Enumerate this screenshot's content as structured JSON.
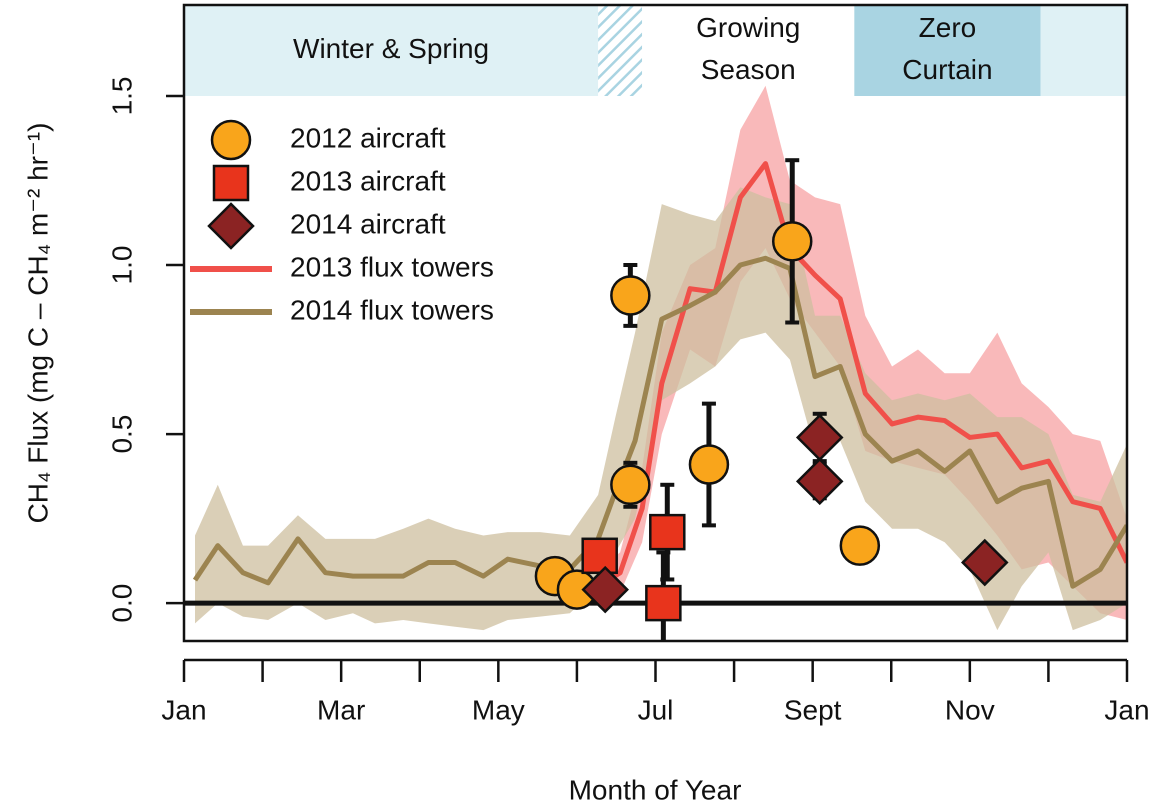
{
  "chart_data": {
    "type": "scatter",
    "xlabel": "Month of Year",
    "ylabel": "CH₄ Flux (mg C – CH₄ m⁻² hr⁻¹)",
    "xlim": [
      0,
      12
    ],
    "ylim": [
      -0.112,
      1.769
    ],
    "xticks": [
      {
        "value": 0,
        "label": "Jan"
      },
      {
        "value": 2,
        "label": "Mar"
      },
      {
        "value": 4,
        "label": "May"
      },
      {
        "value": 6,
        "label": "Jul"
      },
      {
        "value": 8,
        "label": "Sept"
      },
      {
        "value": 10,
        "label": "Nov"
      },
      {
        "value": 12,
        "label": "Jan"
      }
    ],
    "xticks_minor": [
      1,
      3,
      5,
      7,
      9,
      11
    ],
    "yticks": [
      {
        "value": 0,
        "label": "0.0"
      },
      0.5,
      {
        "value": 1,
        "label": "1.0"
      },
      1.5
    ],
    "reference_line": 0,
    "legend": "upper left",
    "seasons": [
      {
        "label": [
          "Winter & Spring"
        ],
        "start": 0,
        "end": 5.27,
        "color": "#dff1f5"
      },
      {
        "start": 5.27,
        "end": 5.83,
        "color": "#a9d4e2",
        "pattern": "hatch"
      },
      {
        "label": [
          "Growing",
          "Season"
        ],
        "start": 5.83,
        "end": 8.53,
        "color": "#ffffff"
      },
      {
        "label": [
          "Zero",
          "Curtain"
        ],
        "start": 8.53,
        "end": 10.9,
        "color": "#a9d4e2"
      },
      {
        "start": 10.9,
        "end": 12,
        "color": "#dff1f5"
      }
    ],
    "series": [
      {
        "name": "2012 aircraft",
        "kind": "scatter",
        "marker": "circle",
        "color": "#f9a51b",
        "x": [
          4.72,
          5.0,
          5.68,
          5.68,
          6.68,
          7.74,
          8.6
        ],
        "values": [
          0.08,
          0.04,
          0.91,
          0.35,
          0.41,
          1.07,
          0.17
        ],
        "errors": [
          null,
          null,
          0.09,
          0.065,
          0.18,
          0.24,
          null
        ]
      },
      {
        "name": "2013 aircraft",
        "kind": "scatter",
        "marker": "square",
        "color": "#e8341c",
        "x": [
          5.29,
          6.15,
          6.1
        ],
        "values": [
          0.14,
          0.21,
          0.0
        ],
        "errors": [
          null,
          0.14,
          0.15
        ]
      },
      {
        "name": "2014 aircraft",
        "kind": "scatter",
        "marker": "diamond",
        "color": "#8b2323",
        "x": [
          5.36,
          8.09,
          8.09,
          10.19
        ],
        "values": [
          0.04,
          0.49,
          0.36,
          0.12
        ],
        "errors": [
          null,
          0.07,
          0.05,
          null
        ]
      },
      {
        "name": "2013 flux towers",
        "kind": "line",
        "color": "#f0504a",
        "band_color": "#f7a1a3",
        "x": [
          5.27,
          5.55,
          5.83,
          6.08,
          6.44,
          6.76,
          7.08,
          7.4,
          7.71,
          8.03,
          8.35,
          8.67,
          9.01,
          9.34,
          9.68,
          10.0,
          10.35,
          10.66,
          11.0,
          11.31,
          11.66,
          12.0
        ],
        "values": [
          0.05,
          0.09,
          0.28,
          0.65,
          0.93,
          0.92,
          1.2,
          1.3,
          1.05,
          0.97,
          0.9,
          0.62,
          0.53,
          0.55,
          0.54,
          0.49,
          0.5,
          0.4,
          0.42,
          0.3,
          0.28,
          0.12
        ],
        "lower": [
          0,
          0.03,
          0.18,
          0.5,
          0.75,
          0.7,
          0.95,
          1.05,
          0.9,
          0.8,
          0.7,
          0.45,
          0.42,
          0.4,
          0.38,
          0.3,
          0.2,
          0.1,
          0.12,
          0.05,
          -0.03,
          -0.05
        ],
        "upper": [
          0.1,
          0.15,
          0.4,
          0.8,
          1.0,
          1.05,
          1.4,
          1.53,
          1.25,
          1.2,
          1.18,
          0.85,
          0.7,
          0.75,
          0.68,
          0.68,
          0.8,
          0.65,
          0.58,
          0.5,
          0.48,
          0.25
        ]
      },
      {
        "name": "2014 flux towers",
        "kind": "line",
        "color": "#9c8450",
        "band_color": "#cdbf9f",
        "x": [
          0.14,
          0.43,
          0.75,
          1.07,
          1.45,
          1.8,
          2.15,
          2.43,
          2.79,
          3.11,
          3.45,
          3.81,
          4.12,
          4.53,
          4.91,
          5.27,
          5.49,
          5.74,
          6.08,
          6.44,
          6.76,
          7.08,
          7.4,
          7.71,
          8.03,
          8.35,
          8.67,
          9.01,
          9.34,
          9.68,
          10.0,
          10.35,
          10.66,
          11.0,
          11.31,
          11.66,
          12.0
        ],
        "values": [
          0.068,
          0.17,
          0.09,
          0.06,
          0.19,
          0.09,
          0.08,
          0.08,
          0.08,
          0.12,
          0.12,
          0.08,
          0.13,
          0.11,
          0.1,
          0.19,
          0.33,
          0.48,
          0.84,
          0.88,
          0.92,
          1.0,
          1.02,
          0.99,
          0.67,
          0.7,
          0.5,
          0.42,
          0.45,
          0.39,
          0.45,
          0.3,
          0.34,
          0.36,
          0.05,
          0.1,
          0.23
        ],
        "lower": [
          -0.06,
          0.0,
          -0.04,
          -0.05,
          0.0,
          -0.05,
          -0.03,
          -0.06,
          -0.05,
          -0.06,
          -0.07,
          -0.08,
          -0.05,
          -0.04,
          -0.03,
          0.05,
          0.15,
          0.25,
          0.6,
          0.65,
          0.7,
          0.78,
          0.8,
          0.72,
          0.45,
          0.48,
          0.3,
          0.22,
          0.22,
          0.18,
          0.1,
          -0.08,
          0.05,
          0.15,
          -0.08,
          -0.05,
          0.0
        ],
        "upper": [
          0.2,
          0.35,
          0.17,
          0.17,
          0.26,
          0.19,
          0.19,
          0.19,
          0.22,
          0.25,
          0.22,
          0.2,
          0.21,
          0.21,
          0.2,
          0.32,
          0.55,
          0.8,
          1.18,
          1.15,
          1.13,
          1.23,
          1.2,
          1.18,
          0.85,
          0.85,
          0.68,
          0.6,
          0.62,
          0.6,
          0.62,
          0.55,
          0.55,
          0.5,
          0.32,
          0.3,
          0.47
        ]
      }
    ]
  }
}
